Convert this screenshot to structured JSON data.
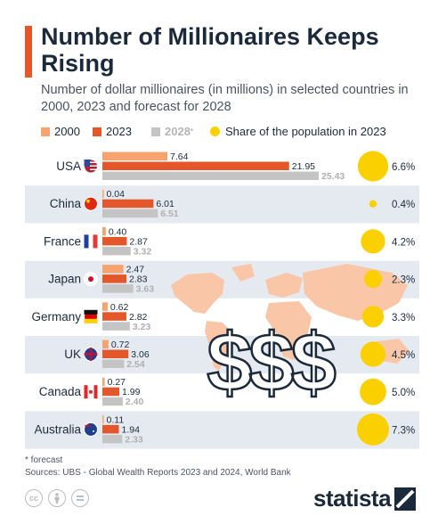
{
  "title": "Number of Millionaires Keeps Rising",
  "subtitle": "Number of dollar millionaires (in millions) in selected countries in 2000, 2023 and forecast for 2028",
  "legend": {
    "series_2000": "2000",
    "series_2023": "2023",
    "series_2028": "2028",
    "series_2028_mark": "*",
    "share": "Share of the population in 2023"
  },
  "colors": {
    "series_2000": "#f5a46f",
    "series_2023": "#e3572b",
    "series_2028": "#c4c4c4",
    "share": "#fbd000",
    "row_band": "#e5eaf0",
    "accent": "#e3572b",
    "text": "#1b2a3a",
    "map": "#f9c6a8"
  },
  "chart_data": {
    "type": "bar",
    "orientation": "horizontal",
    "title": "Number of Millionaires Keeps Rising",
    "categories": [
      "USA",
      "China",
      "France",
      "Japan",
      "Germany",
      "UK",
      "Canada",
      "Australia"
    ],
    "flags": [
      "us-flag-icon",
      "china-flag-icon",
      "france-flag-icon",
      "japan-flag-icon",
      "germany-flag-icon",
      "uk-flag-icon",
      "canada-flag-icon",
      "australia-flag-icon"
    ],
    "series": [
      {
        "name": "2000",
        "values": [
          7.64,
          0.04,
          0.4,
          2.47,
          0.62,
          0.72,
          0.27,
          0.11
        ],
        "labels": [
          "7.64",
          "0.04",
          "0.40",
          "2.47",
          "0.62",
          "0.72",
          "0.27",
          "0.11"
        ]
      },
      {
        "name": "2023",
        "values": [
          21.95,
          6.01,
          2.87,
          2.83,
          2.82,
          3.06,
          1.99,
          1.94
        ],
        "labels": [
          "21.95",
          "6.01",
          "2.87",
          "2.83",
          "2.82",
          "3.06",
          "1.99",
          "1.94"
        ]
      },
      {
        "name": "2028",
        "values": [
          25.43,
          6.51,
          3.32,
          3.63,
          3.23,
          2.54,
          2.4,
          2.33
        ],
        "labels": [
          "25.43",
          "6.51",
          "3.32",
          "3.63",
          "3.23",
          "2.54",
          "2.40",
          "2.33"
        ]
      }
    ],
    "share_2023": {
      "name": "Share of the population in 2023",
      "values": [
        6.6,
        0.4,
        4.2,
        2.3,
        3.3,
        4.5,
        5.0,
        7.3
      ],
      "labels": [
        "6.6%",
        "0.4%",
        "4.2%",
        "2.3%",
        "3.3%",
        "4.5%",
        "5.0%",
        "7.3%"
      ]
    },
    "xlim": [
      0,
      25.43
    ],
    "legend_position": "top",
    "grid": false,
    "annotation": "$$$"
  },
  "footnote": "* forecast",
  "sources": "Sources: UBS - Global Wealth Reports 2023 and 2024, World Bank",
  "license_icons": [
    "cc-icon",
    "attribution-icon",
    "no-derivatives-icon"
  ],
  "brand": "statista"
}
